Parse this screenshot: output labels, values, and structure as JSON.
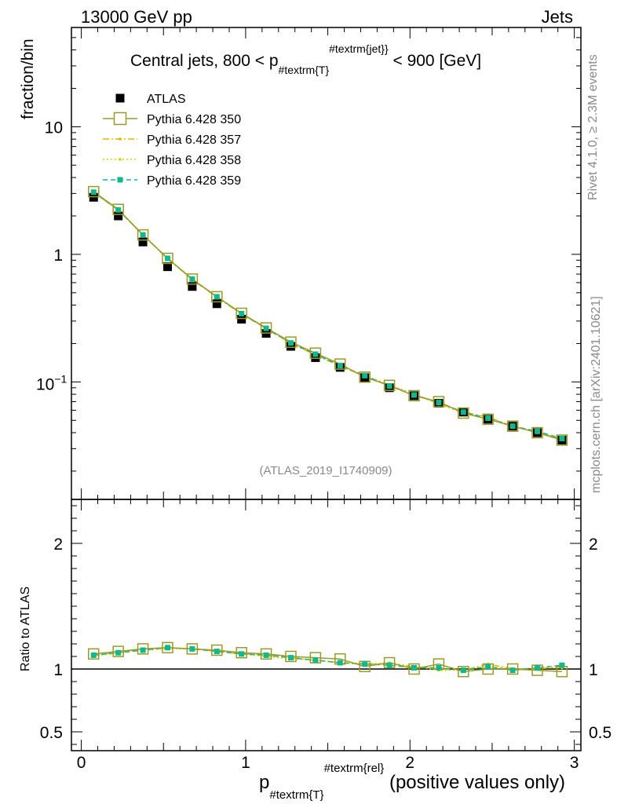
{
  "header": {
    "left": "13000 GeV pp",
    "right": "Jets"
  },
  "side_labels": {
    "top": "Rivet 4.1.0, ≥ 2.3M events",
    "bottom": "mcplots.cern.ch [arXiv:2401.10621]"
  },
  "analysis_id": "(ATLAS_2019_I1740909)",
  "chart_data": [
    {
      "type": "scatter",
      "panel": "main",
      "title_prefix": "Central jets, 800 < p",
      "title_sub": "#textrm{T",
      "title_sup": "#textrm{jet}",
      "title_suffix": " < 900 [GeV]",
      "ylabel": "fraction/bin",
      "yscale": "log",
      "ylim": [
        0.012,
        60
      ],
      "xlim": [
        -0.06,
        3.04
      ],
      "y_ticks": [
        {
          "value": 10,
          "label": "10"
        },
        {
          "value": 1,
          "label": "1"
        }
      ],
      "y_tick_exp": {
        "value": 0.1,
        "base": "10",
        "exp": "−1"
      },
      "x": [
        0.075,
        0.225,
        0.375,
        0.525,
        0.675,
        0.825,
        0.975,
        1.125,
        1.275,
        1.425,
        1.575,
        1.725,
        1.875,
        2.025,
        2.175,
        2.325,
        2.475,
        2.625,
        2.775,
        2.925
      ],
      "series": [
        {
          "name": "ATLAS",
          "values": [
            2.8,
            2.0,
            1.25,
            0.8,
            0.56,
            0.41,
            0.31,
            0.24,
            0.19,
            0.155,
            0.13,
            0.108,
            0.09,
            0.078,
            0.068,
            0.058,
            0.051,
            0.045,
            0.04,
            0.035
          ]
        },
        {
          "name": "Pythia 6.428 350",
          "values": [
            3.1,
            2.25,
            1.42,
            0.93,
            0.64,
            0.465,
            0.345,
            0.265,
            0.205,
            0.168,
            0.138,
            0.109,
            0.094,
            0.078,
            0.07,
            0.057,
            0.051,
            0.045,
            0.04,
            0.035
          ]
        },
        {
          "name": "Pythia 6.428 357",
          "values": [
            3.05,
            2.22,
            1.42,
            0.92,
            0.635,
            0.46,
            0.34,
            0.262,
            0.2,
            0.163,
            0.133,
            0.111,
            0.093,
            0.08,
            0.068,
            0.058,
            0.053,
            0.045,
            0.04,
            0.036
          ]
        },
        {
          "name": "Pythia 6.428 358",
          "values": [
            3.08,
            2.24,
            1.43,
            0.93,
            0.64,
            0.465,
            0.343,
            0.263,
            0.202,
            0.165,
            0.135,
            0.112,
            0.095,
            0.08,
            0.067,
            0.057,
            0.052,
            0.045,
            0.04,
            0.036
          ]
        },
        {
          "name": "Pythia 6.428 359",
          "values": [
            3.07,
            2.23,
            1.42,
            0.93,
            0.64,
            0.465,
            0.343,
            0.263,
            0.202,
            0.165,
            0.134,
            0.112,
            0.093,
            0.079,
            0.069,
            0.058,
            0.052,
            0.045,
            0.041,
            0.036
          ]
        }
      ]
    },
    {
      "type": "line",
      "panel": "ratio",
      "ylabel": "Ratio to ATLAS",
      "xlabel_main": "p",
      "xlabel_sub": "#textrm{T",
      "xlabel_sup": "#textrm{rel",
      "xlabel_suffix": " (positive values only)",
      "ylim": [
        0.35,
        2.35
      ],
      "xlim": [
        -0.06,
        3.04
      ],
      "y_ticks": [
        {
          "value": 2,
          "label": "2"
        },
        {
          "value": 1,
          "label": "1"
        },
        {
          "value": 0.5,
          "label": "0.5"
        }
      ],
      "x_ticks": [
        {
          "value": 0,
          "label": "0"
        },
        {
          "value": 1,
          "label": "1"
        },
        {
          "value": 2,
          "label": "2"
        },
        {
          "value": 3,
          "label": "3"
        }
      ],
      "x": [
        0.075,
        0.225,
        0.375,
        0.525,
        0.675,
        0.825,
        0.975,
        1.125,
        1.275,
        1.425,
        1.575,
        1.725,
        1.875,
        2.025,
        2.175,
        2.325,
        2.475,
        2.625,
        2.775,
        2.925
      ],
      "series": [
        {
          "name": "Pythia 6.428 350",
          "values": [
            1.12,
            1.14,
            1.16,
            1.17,
            1.16,
            1.15,
            1.13,
            1.12,
            1.1,
            1.09,
            1.08,
            1.02,
            1.05,
            1.0,
            1.04,
            0.98,
            1.0,
            1.0,
            0.99,
            0.98
          ]
        },
        {
          "name": "Pythia 6.428 357",
          "values": [
            1.11,
            1.13,
            1.16,
            1.17,
            1.16,
            1.14,
            1.12,
            1.11,
            1.09,
            1.07,
            1.05,
            1.04,
            1.04,
            1.02,
            1.0,
            0.99,
            1.04,
            1.0,
            1.0,
            1.02
          ]
        },
        {
          "name": "Pythia 6.428 358",
          "values": [
            1.1,
            1.13,
            1.15,
            1.16,
            1.16,
            1.14,
            1.12,
            1.1,
            1.08,
            1.07,
            1.05,
            1.04,
            1.05,
            1.02,
            0.99,
            0.99,
            1.02,
            1.0,
            1.01,
            1.01
          ]
        },
        {
          "name": "Pythia 6.428 359",
          "values": [
            1.11,
            1.13,
            1.15,
            1.17,
            1.16,
            1.14,
            1.12,
            1.11,
            1.09,
            1.07,
            1.05,
            1.04,
            1.03,
            1.01,
            1.01,
            0.99,
            1.02,
            0.99,
            1.01,
            1.03
          ]
        }
      ]
    }
  ],
  "legend": [
    {
      "label": "ATLAS",
      "color": "#000000",
      "style": "solid-square"
    },
    {
      "label": "Pythia 6.428 350",
      "color": "#9a9a2a",
      "style": "open-square-solid"
    },
    {
      "label": "Pythia 6.428 357",
      "color": "#e8b400",
      "style": "dashdot"
    },
    {
      "label": "Pythia 6.428 358",
      "color": "#d4d400",
      "style": "dotted"
    },
    {
      "label": "Pythia 6.428 359",
      "color": "#12b88a",
      "style": "dashed-square"
    }
  ]
}
